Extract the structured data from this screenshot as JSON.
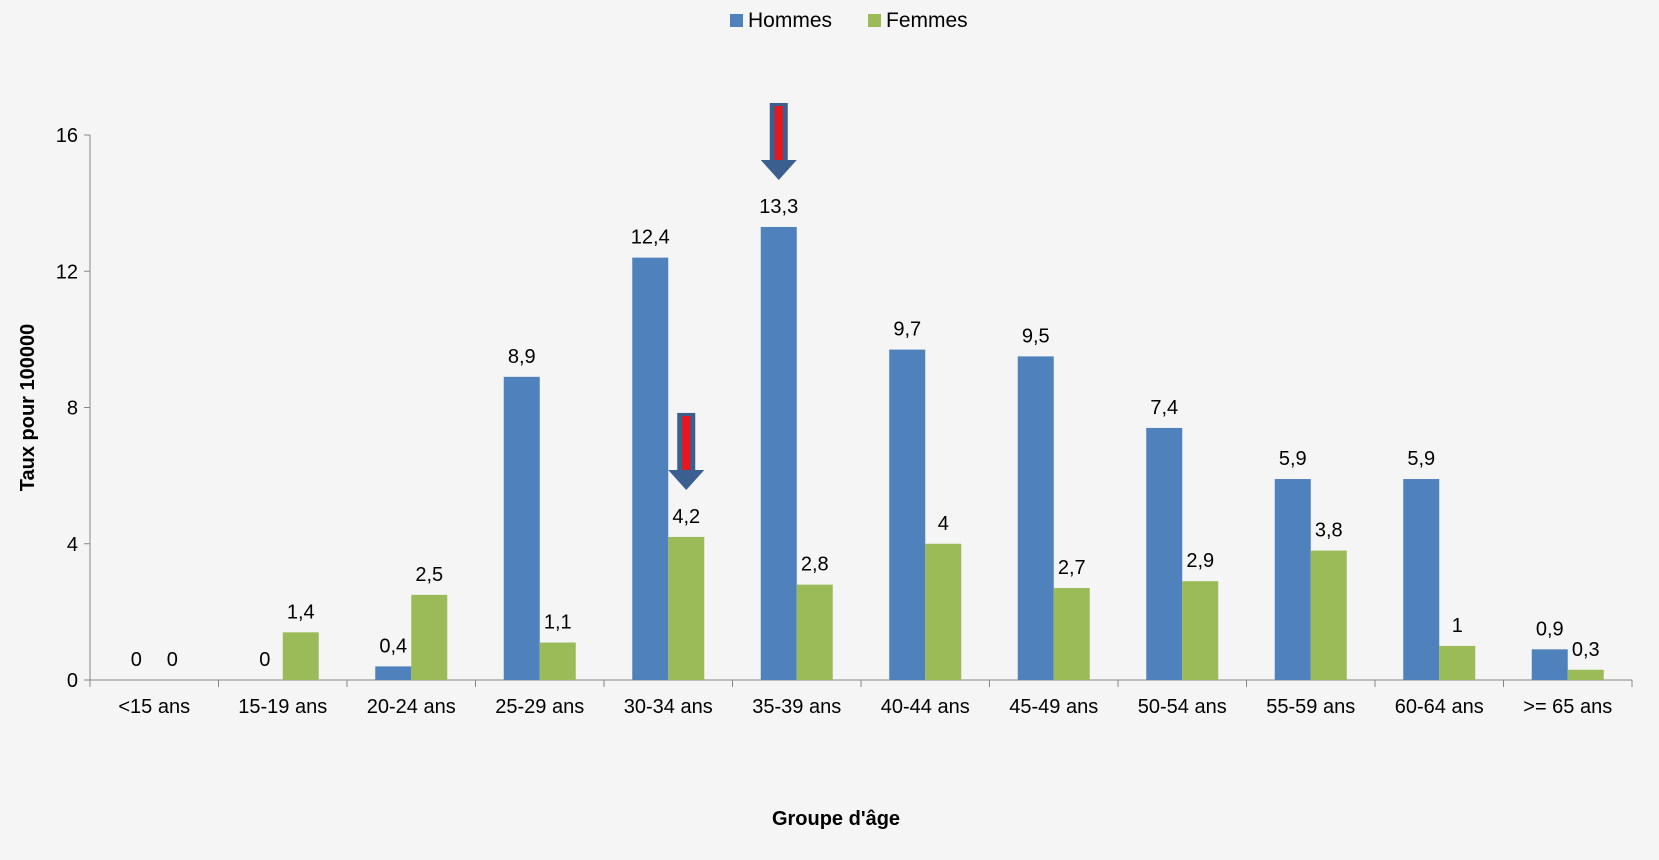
{
  "chart_data": {
    "type": "bar",
    "title": "",
    "xlabel": "Groupe d'âge",
    "ylabel": "Taux pour 100000",
    "ylim": [
      0,
      16
    ],
    "yticks": [
      0,
      4,
      8,
      12,
      16
    ],
    "grid": false,
    "legend_position": "top-center",
    "categories": [
      "<15 ans",
      "15-19 ans",
      "20-24 ans",
      "25-29 ans",
      "30-34 ans",
      "35-39 ans",
      "40-44 ans",
      "45-49 ans",
      "50-54 ans",
      "55-59 ans",
      "60-64 ans",
      ">= 65 ans"
    ],
    "series": [
      {
        "name": "Hommes",
        "color": "#4f81bd",
        "values": [
          0,
          0,
          0.4,
          8.9,
          12.4,
          13.3,
          9.7,
          9.5,
          7.4,
          5.9,
          5.9,
          0.9
        ],
        "labels": [
          "0",
          "0",
          "0,4",
          "8,9",
          "12,4",
          "13,3",
          "9,7",
          "9,5",
          "7,4",
          "5,9",
          "5,9",
          "0,9"
        ]
      },
      {
        "name": "Femmes",
        "color": "#9bbb59",
        "values": [
          0,
          1.4,
          2.5,
          1.1,
          4.2,
          2.8,
          4,
          2.7,
          2.9,
          3.8,
          1,
          0.3
        ],
        "labels": [
          "0",
          "1,4",
          "2,5",
          "1,1",
          "4,2",
          "2,8",
          "4",
          "2,7",
          "2,9",
          "3,8",
          "1",
          "0,3"
        ]
      }
    ],
    "annotations": [
      {
        "type": "arrow",
        "series": "Hommes",
        "category": "35-39 ans",
        "color": "#e8171b",
        "outline": "#3b5f8f"
      },
      {
        "type": "arrow",
        "series": "Femmes",
        "category": "30-34 ans",
        "color": "#e8171b",
        "outline": "#3b5f8f"
      }
    ]
  }
}
